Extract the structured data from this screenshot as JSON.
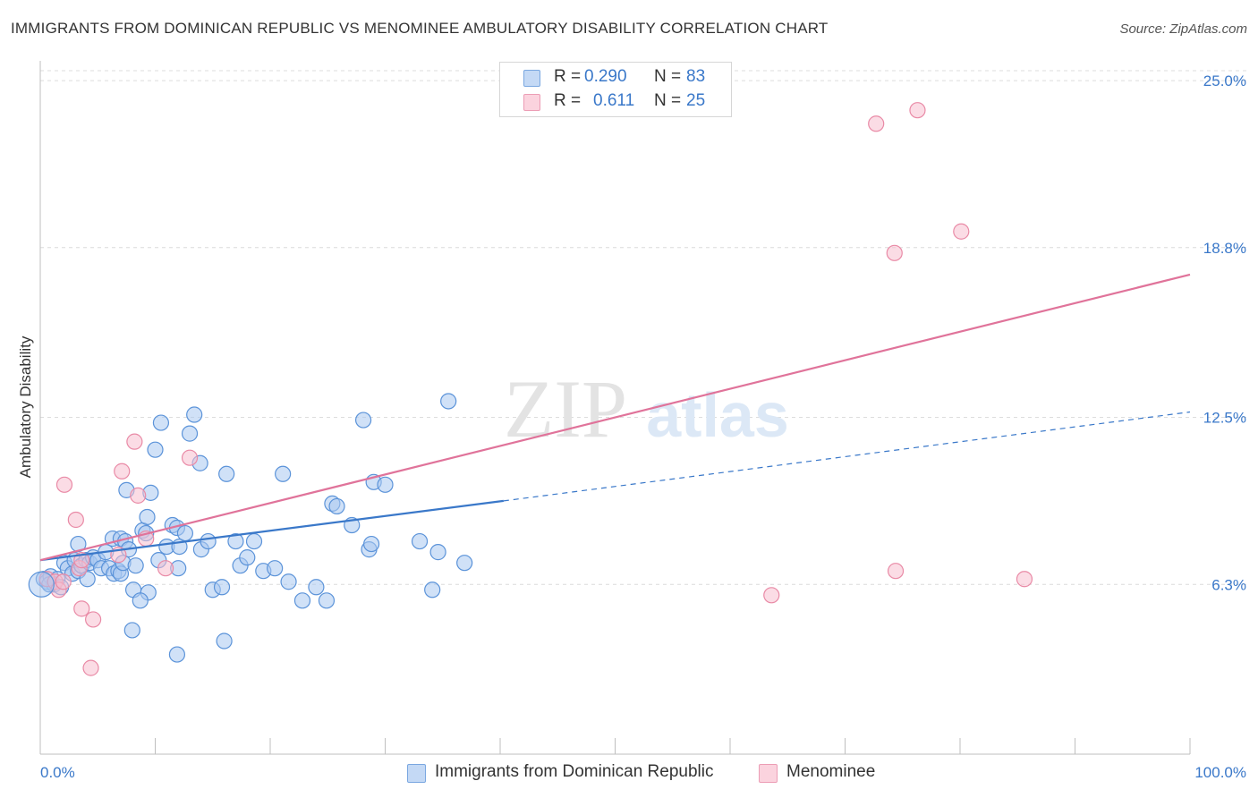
{
  "title": "IMMIGRANTS FROM DOMINICAN REPUBLIC VS MENOMINEE AMBULATORY DISABILITY CORRELATION CHART",
  "source": "Source: ZipAtlas.com",
  "watermark": {
    "zip": "ZIP",
    "atlas": "atlas"
  },
  "legend_top": [
    {
      "r_label": "R =",
      "r_value": "0.290",
      "n_label": "N =",
      "n_value": "83",
      "color": "#a9c8f0"
    },
    {
      "r_label": "R =",
      "r_value": "0.611",
      "n_label": "N =",
      "n_value": "25",
      "color": "#f7bfcf"
    }
  ],
  "legend_bottom": [
    {
      "label": "Immigrants from Dominican Republic",
      "color": "#a9c8f0"
    },
    {
      "label": "Menominee",
      "color": "#f7bfcf"
    }
  ],
  "chart_data": {
    "type": "scatter",
    "title": "IMMIGRANTS FROM DOMINICAN REPUBLIC VS MENOMINEE AMBULATORY DISABILITY CORRELATION CHART",
    "xlabel": "",
    "ylabel": "Ambulatory Disability",
    "xlim": [
      0,
      100
    ],
    "ylim": [
      0,
      25.6
    ],
    "x_tick_labels": [
      "0.0%",
      "100.0%"
    ],
    "y_ticks": [
      6.3,
      12.5,
      18.8,
      25.0
    ],
    "y_tick_labels": [
      "6.3%",
      "12.5%",
      "18.8%",
      "25.0%"
    ],
    "grid": true,
    "legend_position": "top-center",
    "series": [
      {
        "name": "Immigrants from Dominican Republic",
        "color": "#5b93d9",
        "fill": "#a9c8f0",
        "points": [
          [
            0.3,
            6.5
          ],
          [
            0.6,
            6.4
          ],
          [
            0.9,
            6.6
          ],
          [
            1.2,
            6.3
          ],
          [
            1.5,
            6.5
          ],
          [
            1.8,
            6.2
          ],
          [
            2.1,
            7.1
          ],
          [
            2.4,
            6.9
          ],
          [
            2.8,
            6.7
          ],
          [
            3.0,
            7.2
          ],
          [
            3.3,
            6.8
          ],
          [
            3.6,
            7.0
          ],
          [
            3.3,
            7.8
          ],
          [
            4.0,
            7.2
          ],
          [
            4.3,
            7.1
          ],
          [
            4.1,
            6.5
          ],
          [
            4.6,
            7.3
          ],
          [
            5.0,
            7.2
          ],
          [
            5.3,
            6.9
          ],
          [
            6.0,
            6.9
          ],
          [
            6.4,
            6.7
          ],
          [
            6.8,
            6.8
          ],
          [
            7.0,
            6.7
          ],
          [
            7.2,
            7.1
          ],
          [
            6.3,
            8.0
          ],
          [
            7.0,
            8.0
          ],
          [
            7.4,
            7.9
          ],
          [
            7.7,
            7.6
          ],
          [
            7.5,
            9.8
          ],
          [
            8.3,
            7.0
          ],
          [
            8.1,
            6.1
          ],
          [
            8.9,
            8.3
          ],
          [
            9.3,
            8.8
          ],
          [
            9.6,
            9.7
          ],
          [
            9.4,
            6.0
          ],
          [
            10.0,
            11.3
          ],
          [
            10.5,
            12.3
          ],
          [
            10.3,
            7.2
          ],
          [
            11.0,
            7.7
          ],
          [
            11.5,
            8.5
          ],
          [
            11.9,
            8.4
          ],
          [
            12.1,
            7.7
          ],
          [
            12.0,
            6.9
          ],
          [
            12.6,
            8.2
          ],
          [
            13.0,
            11.9
          ],
          [
            13.4,
            12.6
          ],
          [
            13.9,
            10.8
          ],
          [
            14.0,
            7.6
          ],
          [
            14.6,
            7.9
          ],
          [
            15.0,
            6.1
          ],
          [
            16.2,
            10.4
          ],
          [
            17.0,
            7.9
          ],
          [
            17.4,
            7.0
          ],
          [
            18.0,
            7.3
          ],
          [
            18.6,
            7.9
          ],
          [
            19.4,
            6.8
          ],
          [
            20.4,
            6.9
          ],
          [
            21.1,
            10.4
          ],
          [
            21.6,
            6.4
          ],
          [
            22.8,
            5.7
          ],
          [
            24.0,
            6.2
          ],
          [
            24.9,
            5.7
          ],
          [
            25.4,
            9.3
          ],
          [
            25.8,
            9.2
          ],
          [
            27.1,
            8.5
          ],
          [
            28.1,
            12.4
          ],
          [
            28.6,
            7.6
          ],
          [
            28.8,
            7.8
          ],
          [
            29.0,
            10.1
          ],
          [
            30.0,
            10.0
          ],
          [
            33.0,
            7.9
          ],
          [
            34.1,
            6.1
          ],
          [
            34.6,
            7.5
          ],
          [
            35.5,
            13.1
          ],
          [
            36.9,
            7.1
          ],
          [
            8.0,
            4.6
          ],
          [
            11.9,
            3.7
          ],
          [
            16.0,
            4.2
          ],
          [
            5.7,
            7.5
          ],
          [
            8.7,
            5.7
          ],
          [
            0.8,
            6.3
          ],
          [
            9.2,
            8.2
          ],
          [
            15.8,
            6.2
          ]
        ]
      },
      {
        "name": "Menominee",
        "color": "#e98aa6",
        "fill": "#f7bfcf",
        "points": [
          [
            0.6,
            6.5
          ],
          [
            1.3,
            6.4
          ],
          [
            1.6,
            6.1
          ],
          [
            2.0,
            6.4
          ],
          [
            2.1,
            10.0
          ],
          [
            3.1,
            8.7
          ],
          [
            3.4,
            6.9
          ],
          [
            3.6,
            5.4
          ],
          [
            4.4,
            3.2
          ],
          [
            4.6,
            5.0
          ],
          [
            7.1,
            10.5
          ],
          [
            8.5,
            9.6
          ],
          [
            8.2,
            11.6
          ],
          [
            9.2,
            8.0
          ],
          [
            10.9,
            6.9
          ],
          [
            13.0,
            11.0
          ],
          [
            63.6,
            5.9
          ],
          [
            72.7,
            23.4
          ],
          [
            74.3,
            18.6
          ],
          [
            74.4,
            6.8
          ],
          [
            76.3,
            23.9
          ],
          [
            80.1,
            19.4
          ],
          [
            85.6,
            6.5
          ],
          [
            6.8,
            7.4
          ],
          [
            3.6,
            7.2
          ]
        ]
      }
    ],
    "trendlines": [
      {
        "series": "Immigrants from Dominican Republic",
        "color": "#3a78c9",
        "solid_from": [
          0,
          7.2
        ],
        "solid_to": [
          40.3,
          9.4
        ],
        "dashed_to": [
          100,
          12.7
        ]
      },
      {
        "series": "Menominee",
        "color": "#e0739a",
        "from": [
          0,
          7.2
        ],
        "to": [
          100,
          17.8
        ]
      }
    ]
  }
}
